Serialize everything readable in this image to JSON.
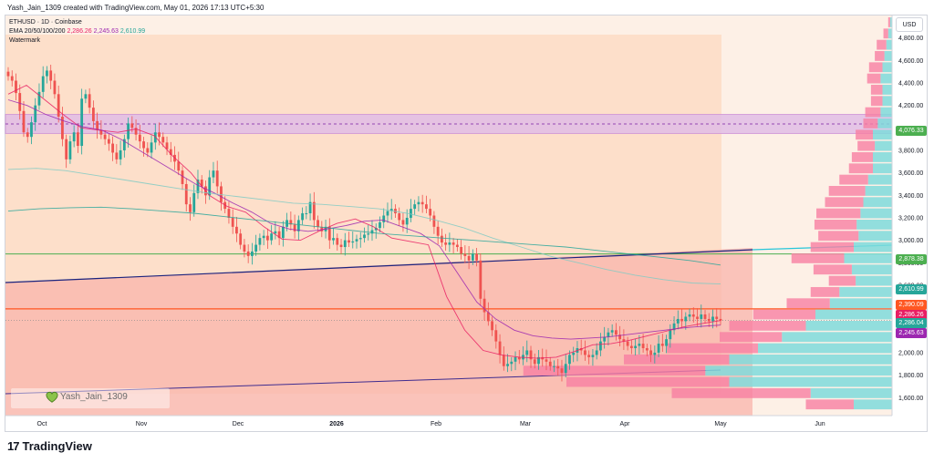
{
  "header": {
    "caption": "Yash_Jain_1309 created with TradingView.com, May 01, 2026 17:13 UTC+5:30"
  },
  "legend": {
    "symbol": "ETHUSD · 1D · Coinbase",
    "ema_label": "EMA 20/50/100/200",
    "ema20": "2,286.26",
    "ema50": "2,245.63",
    "ema100": "2,610.99",
    "watermark": "Watermark"
  },
  "currency": "USD",
  "author_badge": "Yash_Jain_1309",
  "footer": {
    "logo_mark": "17",
    "logo_text": "TradingView"
  },
  "colors": {
    "up": "#26a69a",
    "down": "#ef5350",
    "ema20": "#e91e63",
    "ema50": "#9c27b0",
    "ema100": "#80cbc4",
    "ema200": "#26a69a",
    "resistance_band": "#e1bee7",
    "orange_line": "#ff5722",
    "green_line": "#4caf50"
  },
  "chart_data": {
    "type": "candlestick",
    "title": "ETHUSD · 1D · Coinbase",
    "xlabel": "",
    "ylabel": "",
    "ylim": [
      1440,
      5000
    ],
    "x_ticks": [
      "Oct",
      "Nov",
      "Dec",
      "2026",
      "Feb",
      "Mar",
      "Apr",
      "May",
      "Jun"
    ],
    "y_ticks": [
      "4,800.00",
      "4,600.00",
      "4,400.00",
      "4,200.00",
      "4,000.00",
      "3,800.00",
      "3,600.00",
      "3,400.00",
      "3,200.00",
      "3,000.00",
      "2,800.00",
      "2,600.00",
      "2,400.00",
      "2,200.00",
      "2,000.00",
      "1,800.00",
      "1,600.00"
    ],
    "price_tags": [
      {
        "label": "4,076.33",
        "value": 4076.33,
        "color": "#4caf50"
      },
      {
        "label": "2,878.38",
        "value": 2878.38,
        "color": "#4caf50"
      },
      {
        "label": "2,610.99",
        "value": 2610.99,
        "color": "#26a69a"
      },
      {
        "label": "2,390.09",
        "value": 2390.09,
        "color": "#ff5722"
      },
      {
        "label": "2,286.26",
        "value": 2286.26,
        "color": "#e91e63"
      },
      {
        "label": "2,286.04",
        "value": 2286.04,
        "color": "#26a69a"
      },
      {
        "label": "2,245.63",
        "value": 2245.63,
        "color": "#9c27b0"
      }
    ],
    "levels": {
      "resistance_zone": [
        3950,
        4120
      ],
      "resistance_mid": 4035,
      "orange_line": 2390,
      "green_line": 2878,
      "dotted_line": 2286
    },
    "closes": [
      4460,
      4420,
      4310,
      4150,
      3960,
      3920,
      4050,
      4200,
      4320,
      4460,
      4510,
      4420,
      4300,
      4100,
      3900,
      3720,
      3880,
      3960,
      3840,
      4260,
      4300,
      4180,
      4060,
      3980,
      3940,
      3900,
      3860,
      3780,
      3720,
      3800,
      3900,
      4040,
      4000,
      3940,
      3880,
      3820,
      3780,
      3870,
      3960,
      3920,
      3870,
      3810,
      3760,
      3700,
      3620,
      3500,
      3320,
      3250,
      3420,
      3540,
      3480,
      3400,
      3560,
      3620,
      3480,
      3340,
      3280,
      3200,
      3120,
      3060,
      2960,
      2900,
      2860,
      2900,
      2960,
      3020,
      3040,
      3000,
      3060,
      3080,
      3020,
      3120,
      3180,
      3140,
      3080,
      3180,
      3240,
      3240,
      3340,
      3180,
      3120,
      3080,
      3120,
      3000,
      3020,
      2960,
      2940,
      3000,
      2980,
      2990,
      3010,
      3020,
      3050,
      3060,
      3090,
      3110,
      3160,
      3220,
      3260,
      3280,
      3240,
      3180,
      3140,
      3200,
      3280,
      3320,
      3340,
      3320,
      3280,
      3220,
      3120,
      3040,
      2980,
      2960,
      2980,
      2960,
      2940,
      2880,
      2860,
      2820,
      2880,
      2820,
      2480,
      2360,
      2280,
      2200,
      2100,
      1980,
      1880,
      1900,
      1920,
      1960,
      1940,
      1980,
      2020,
      1940,
      1900,
      1960,
      1940,
      1920,
      1880,
      1880,
      1860,
      1820,
      1900,
      1980,
      2000,
      2040,
      2020,
      1980,
      1960,
      1980,
      2020,
      2100,
      2140,
      2180,
      2200,
      2160,
      2120,
      2100,
      2060,
      2040,
      2060,
      2080,
      2040,
      2020,
      1980,
      2000,
      2080,
      2060,
      2120,
      2200,
      2260,
      2300,
      2280,
      2320,
      2340,
      2320,
      2300,
      2340,
      2300,
      2280,
      2320,
      2300,
      2286
    ],
    "series": [
      {
        "name": "EMA 20",
        "values": [
          4300,
          4380,
          4250,
          4120,
          4000,
          3980,
          3960,
          3990,
          3930,
          3750,
          3600,
          3400,
          3300,
          3250,
          3120,
          3010,
          3000,
          3080,
          3150,
          3190,
          3120,
          3020,
          2990,
          2960,
          2500,
          2200,
          2020,
          1980,
          1960,
          1950,
          1960,
          2010,
          2070,
          2080,
          2110,
          2150,
          2190,
          2230,
          2260,
          2286
        ]
      },
      {
        "name": "EMA 50",
        "values": [
          4250,
          4200,
          4120,
          4060,
          4010,
          3980,
          3900,
          3800,
          3700,
          3600,
          3500,
          3420,
          3330,
          3250,
          3150,
          3100,
          3080,
          3100,
          3130,
          3170,
          3180,
          3120,
          3060,
          2950,
          2700,
          2450,
          2300,
          2200,
          2150,
          2130,
          2120,
          2130,
          2140,
          2160,
          2180,
          2200,
          2220,
          2235,
          2245
        ]
      },
      {
        "name": "EMA 100",
        "values": [
          3630,
          3640,
          3620,
          3580,
          3540,
          3500,
          3460,
          3420,
          3390,
          3360,
          3330,
          3320,
          3300,
          3280,
          3240,
          3180,
          3110,
          3020,
          2940,
          2860,
          2800,
          2740,
          2690,
          2650,
          2620,
          2611
        ]
      },
      {
        "name": "EMA 200",
        "values": [
          3260,
          3280,
          3290,
          3295,
          3280,
          3260,
          3240,
          3210,
          3180,
          3150,
          3120,
          3090,
          3060,
          3040,
          3020,
          3000,
          2980,
          2960,
          2940,
          2910,
          2880,
          2850,
          2820,
          2780
        ]
      }
    ],
    "volume_profile": {
      "prices": [
        1540,
        1640,
        1740,
        1840,
        1940,
        2040,
        2140,
        2240,
        2340,
        2440,
        2540,
        2640,
        2740,
        2840,
        2940,
        3040,
        3140,
        3240,
        3340,
        3440,
        3540,
        3640,
        3740,
        3840,
        3940,
        4040,
        4140,
        4240,
        4340,
        4440,
        4540,
        4640,
        4740,
        4840,
        4940
      ],
      "volume_up": [
        40,
        85,
        170,
        195,
        170,
        140,
        115,
        90,
        80,
        65,
        55,
        38,
        42,
        50,
        40,
        35,
        37,
        33,
        30,
        28,
        25,
        20,
        20,
        18,
        20,
        15,
        12,
        10,
        10,
        12,
        10,
        8,
        6,
        4,
        2
      ],
      "volume_down": [
        50,
        145,
        170,
        190,
        110,
        95,
        65,
        80,
        65,
        45,
        30,
        28,
        40,
        55,
        45,
        42,
        44,
        46,
        40,
        38,
        30,
        25,
        22,
        18,
        18,
        15,
        16,
        12,
        12,
        14,
        14,
        10,
        10,
        5,
        2
      ]
    }
  }
}
